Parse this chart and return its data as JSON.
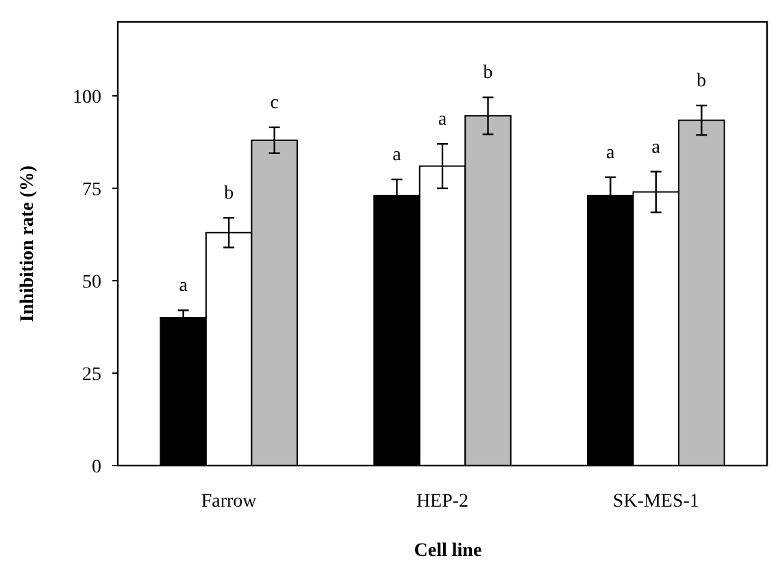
{
  "chart_data": {
    "type": "bar",
    "xlabel": "Cell line",
    "ylabel": "Inhibition rate (%)",
    "categories": [
      "Farrow",
      "HEP-2",
      "SK-MES-1"
    ],
    "series": [
      {
        "color": "#000000",
        "values": [
          40,
          73,
          73
        ],
        "errors": [
          2,
          4.4,
          5
        ]
      },
      {
        "color": "#ffffff",
        "values": [
          63,
          81,
          74
        ],
        "errors": [
          4,
          6,
          5.5
        ]
      },
      {
        "color": "#bbbbbb",
        "values": [
          88,
          94.6,
          93.4
        ],
        "errors": [
          3.5,
          5,
          4
        ]
      }
    ],
    "ylim": [
      0,
      120
    ],
    "yticks": [
      0,
      25,
      50,
      75,
      100
    ],
    "grid": false,
    "annotations": [
      "a",
      "b",
      "c",
      "a",
      "a",
      "b",
      "a",
      "a",
      "b"
    ]
  }
}
